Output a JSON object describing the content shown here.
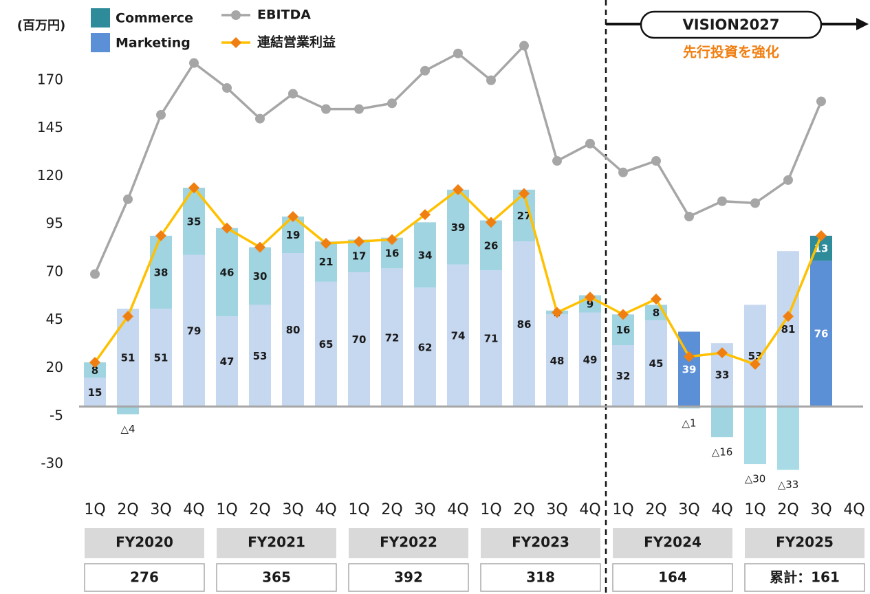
{
  "chart_data": {
    "type": "bar",
    "unit": "(百万円)",
    "categories": [
      "1Q",
      "2Q",
      "3Q",
      "4Q",
      "1Q",
      "2Q",
      "3Q",
      "4Q",
      "1Q",
      "2Q",
      "3Q",
      "4Q",
      "1Q",
      "2Q",
      "3Q",
      "4Q",
      "1Q",
      "2Q",
      "3Q",
      "4Q",
      "1Q",
      "2Q",
      "3Q",
      "4Q"
    ],
    "groups": [
      {
        "label": "FY2020",
        "total": "276"
      },
      {
        "label": "FY2021",
        "total": "365"
      },
      {
        "label": "FY2022",
        "total": "392"
      },
      {
        "label": "FY2023",
        "total": "318"
      },
      {
        "label": "FY2024",
        "total": "164"
      },
      {
        "label": "FY2025",
        "total": "累計：161"
      }
    ],
    "series": [
      {
        "name": "Marketing",
        "type": "bar",
        "color": "#5b8fd6",
        "colors": [
          "#c6d7f0",
          "#c6d7f0",
          "#c6d7f0",
          "#c6d7f0",
          "#c6d7f0",
          "#c6d7f0",
          "#c6d7f0",
          "#c6d7f0",
          "#c6d7f0",
          "#c6d7f0",
          "#c6d7f0",
          "#c6d7f0",
          "#c6d7f0",
          "#c6d7f0",
          "#c6d7f0",
          "#c6d7f0",
          "#c6d7f0",
          "#c6d7f0",
          "#5b8fd6",
          "#c6d7f0",
          "#c6d7f0",
          "#c6d7f0",
          "#5b8fd6",
          "#c6d7f0"
        ],
        "values": [
          15,
          51,
          51,
          79,
          47,
          53,
          80,
          65,
          70,
          72,
          62,
          74,
          71,
          86,
          48,
          49,
          32,
          45,
          39,
          33,
          53,
          81,
          76,
          null
        ]
      },
      {
        "name": "Commerce",
        "type": "bar",
        "color": "#2e8b9a",
        "colors": [
          "#9fd4e0",
          "#9fd4e0",
          "#9fd4e0",
          "#9fd4e0",
          "#9fd4e0",
          "#9fd4e0",
          "#9fd4e0",
          "#9fd4e0",
          "#9fd4e0",
          "#9fd4e0",
          "#9fd4e0",
          "#9fd4e0",
          "#9fd4e0",
          "#9fd4e0",
          "#9fd4e0",
          "#9fd4e0",
          "#9fd4e0",
          "#9fd4e0",
          "#9fd4e0",
          "#9fd4e0",
          "#a8dbe6",
          "#a8dbe6",
          "#2e8b9a",
          "#9fd4e0"
        ],
        "values": [
          8,
          -4,
          38,
          35,
          46,
          30,
          19,
          21,
          17,
          16,
          34,
          39,
          26,
          27,
          2,
          9,
          16,
          8,
          -1,
          -16,
          -30,
          -33,
          13,
          null
        ],
        "value_labels": [
          "8",
          "△4",
          "38",
          "35",
          "46",
          "30",
          "19",
          "21",
          "17",
          "16",
          "34",
          "39",
          "26",
          "27",
          "2",
          "9",
          "16",
          "8",
          "△1",
          "△16",
          "△30",
          "△33",
          "13",
          null
        ]
      },
      {
        "name": "EBITDA",
        "type": "line",
        "color": "#a6a6a6",
        "marker": "circle",
        "values": [
          69,
          108,
          152,
          179,
          166,
          150,
          163,
          155,
          155,
          158,
          175,
          184,
          170,
          188,
          128,
          137,
          122,
          128,
          99,
          107,
          106,
          118,
          159,
          null
        ]
      },
      {
        "name": "連結営業利益",
        "type": "line",
        "color": "#ffc000",
        "marker_color": "#f07f12",
        "marker": "diamond",
        "values": [
          23,
          47,
          89,
          114,
          93,
          83,
          99,
          85,
          86,
          87,
          100,
          113,
          96,
          111,
          49,
          57,
          48,
          56,
          26,
          28,
          22,
          47,
          89,
          null
        ]
      }
    ],
    "ylim": [
      -35,
      195
    ],
    "yticks": [
      -30,
      -5,
      20,
      45,
      70,
      95,
      120,
      145,
      170
    ],
    "annotation": {
      "title": "VISION2027",
      "subtitle": "先行投資を強化"
    }
  }
}
